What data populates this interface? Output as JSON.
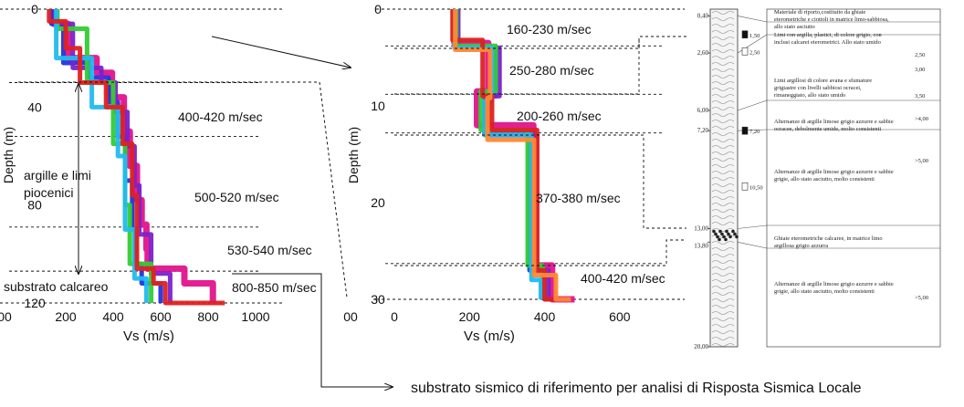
{
  "chart_data": [
    {
      "type": "line",
      "title": "",
      "xlabel": "Vs (m/s)",
      "ylabel": "Depth (m)",
      "xlim": [
        0,
        1000
      ],
      "ylim": [
        120,
        0
      ],
      "x_ticks": [
        "00",
        "200",
        "400",
        "600",
        "800",
        "1000"
      ],
      "y_ticks": [
        "0",
        "40",
        "80",
        "120"
      ],
      "series": [
        {
          "color": "#e0148c",
          "depth": [
            0,
            6,
            20,
            26,
            36,
            50,
            64,
            78,
            88,
            98,
            106,
            112,
            120
          ],
          "vs": [
            150,
            210,
            330,
            395,
            445,
            470,
            500,
            520,
            540,
            545,
            700,
            820,
            820
          ]
        },
        {
          "color": "#2233dd",
          "depth": [
            0,
            6,
            22,
            28,
            38,
            52,
            70,
            90,
            104,
            112,
            120
          ],
          "vs": [
            140,
            190,
            300,
            380,
            420,
            450,
            480,
            495,
            520,
            600,
            600
          ]
        },
        {
          "color": "#7a22cc",
          "depth": [
            0,
            6,
            24,
            30,
            42,
            56,
            72,
            92,
            108,
            116,
            120
          ],
          "vs": [
            155,
            230,
            350,
            410,
            460,
            490,
            510,
            560,
            640,
            640,
            640
          ]
        },
        {
          "color": "#33cc33",
          "depth": [
            0,
            8,
            26,
            30,
            55,
            80,
            95,
            104,
            120
          ],
          "vs": [
            165,
            290,
            290,
            400,
            450,
            470,
            470,
            560,
            560
          ]
        },
        {
          "color": "#22bbee",
          "depth": [
            0,
            20,
            40,
            60,
            90,
            110,
            120
          ],
          "vs": [
            160,
            310,
            420,
            450,
            490,
            540,
            540
          ]
        },
        {
          "color": "#dd2222",
          "depth": [
            0,
            5,
            16,
            30,
            40,
            55,
            76,
            92,
            106,
            112,
            120
          ],
          "vs": [
            130,
            200,
            260,
            370,
            440,
            480,
            500,
            500,
            570,
            620,
            870
          ]
        }
      ],
      "annotations": [
        {
          "text": "400-420 m/sec",
          "depth": 44,
          "vs": 480
        },
        {
          "text": "500-520 m/sec",
          "depth": 76,
          "vs": 620
        },
        {
          "text": "530-540 m/sec",
          "depth": 99,
          "vs": 690
        },
        {
          "text": "800-850 m/sec",
          "depth": 115,
          "vs": 850
        },
        {
          "text": "argille e limi piocenici",
          "depth": 74,
          "vs": 130
        },
        {
          "text": "substrato calcareo",
          "depth": 115,
          "vs": 10
        }
      ],
      "layer_boundaries_depth": [
        30,
        52,
        89,
        107
      ]
    },
    {
      "type": "line",
      "title": "",
      "xlabel": "Vs (m/s)",
      "ylabel": "Depth (m)",
      "xlim": [
        0,
        700
      ],
      "ylim": [
        30,
        0
      ],
      "x_ticks": [
        "00",
        "0",
        "200",
        "400",
        "600"
      ],
      "y_ticks": [
        "0",
        "10",
        "20",
        "30"
      ],
      "series": [
        {
          "color": "#e0148c",
          "depth": [
            0,
            3.5,
            8.5,
            12,
            26.5,
            30
          ],
          "vs": [
            160,
            250,
            220,
            370,
            420,
            480
          ]
        },
        {
          "color": "#2233dd",
          "depth": [
            0,
            4,
            9,
            13,
            27,
            30
          ],
          "vs": [
            165,
            270,
            240,
            360,
            400,
            420
          ]
        },
        {
          "color": "#7a22cc",
          "depth": [
            0,
            4,
            9,
            13,
            27,
            30
          ],
          "vs": [
            170,
            280,
            250,
            380,
            410,
            440
          ]
        },
        {
          "color": "#33cc33",
          "depth": [
            0,
            3.8,
            8.5,
            12.5,
            26.5,
            30
          ],
          "vs": [
            165,
            270,
            230,
            355,
            395,
            395
          ]
        },
        {
          "color": "#22bbee",
          "depth": [
            0,
            4,
            9.5,
            13,
            28,
            30
          ],
          "vs": [
            160,
            260,
            240,
            365,
            390,
            390
          ]
        },
        {
          "color": "#dd2222",
          "depth": [
            0,
            3.2,
            9,
            12.5,
            27,
            30
          ],
          "vs": [
            155,
            235,
            260,
            380,
            400,
            460
          ]
        },
        {
          "color": "#ff8833",
          "depth": [
            0,
            4.2,
            9.2,
            13.5,
            27.5,
            30
          ],
          "vs": [
            162,
            255,
            248,
            372,
            430,
            470
          ]
        }
      ],
      "annotations": [
        {
          "text": "160-230 m/sec",
          "depth": 1.8
        },
        {
          "text": "250-280 m/sec",
          "depth": 6.3
        },
        {
          "text": "200-260 m/sec",
          "depth": 10.8
        },
        {
          "text": "370-380 m/sec",
          "depth": 19.7
        },
        {
          "text": "400-420 m/sec",
          "depth": 28
        }
      ],
      "layer_boundaries_depth": [
        3.8,
        8.8,
        12.8,
        26.3
      ]
    }
  ],
  "borehole_log": {
    "depths": [
      "0,40",
      "2,60",
      "6,00",
      "7,20",
      "13,00",
      "13,80",
      "20,00"
    ],
    "samples": [
      "1,50",
      "2,50",
      "7,20",
      "10,50"
    ],
    "sample_values": [
      "2,50",
      "3,00",
      "3,50",
      ">4,00",
      ">5,00",
      ">5,00"
    ],
    "descriptions": [
      "Materiale di riporto,costituito da ghiaie eterometriche e ciottoli in matrice limo-sabbiosa, allo stato asciutto",
      "Limi con argilla, plastici, di colore grigio, con inclusi calcarei eterometrici. Allo stato umido",
      "Limi argillosi di colore avana e sfumature grigiastre con livelli sabbiosi ocracei, rimaneggiato, allo stato umido",
      "Alternanze di argille limose grigio azzurre e sabbie ocracee, debolmente umide, molto consistenti",
      "Alternanze di argille limose grigio azzurre e sabbie grigie, allo stato asciutto, molto consistenti",
      "Ghiaie eterometriche calcaree, in matrice limo argillosa grigio azzurra",
      "Alternanze di argille limose grigio azzurre e sabbie grigie, allo stato asciutto, molto consistenti"
    ]
  },
  "footer": {
    "caption": "substrato sismico di riferimento per analisi di Risposta Sismica Locale"
  }
}
